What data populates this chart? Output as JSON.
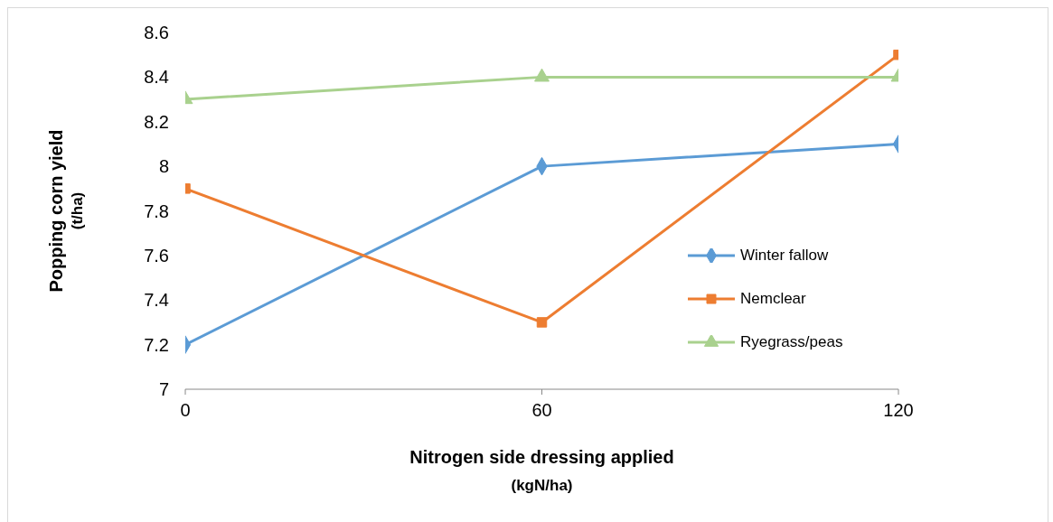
{
  "chart_data": {
    "type": "line",
    "xlabel": "Nitrogen side dressing applied\n(kgN/ha)",
    "ylabel": "Popping corn yield\n(t/ha)",
    "x": [
      0,
      60,
      120
    ],
    "xlim": [
      0,
      120
    ],
    "xticks": [
      0,
      60,
      120
    ],
    "ylim": [
      7,
      8.6
    ],
    "yticks": [
      7,
      7.2,
      7.4,
      7.6,
      7.8,
      8,
      8.2,
      8.4,
      8.6
    ],
    "grid": false,
    "legend": "right",
    "line_style": "solid",
    "series": [
      {
        "name": "Winter fallow",
        "color": "#5b9bd5",
        "marker": "diamond",
        "values": [
          7.2,
          8.0,
          8.1
        ]
      },
      {
        "name": "Nemclear",
        "color": "#ed7d31",
        "marker": "square",
        "values": [
          7.9,
          7.3,
          8.5
        ]
      },
      {
        "name": "Ryegrass/peas",
        "color": "#a9d18e",
        "marker": "triangle",
        "values": [
          8.3,
          8.4,
          8.4
        ]
      }
    ]
  }
}
